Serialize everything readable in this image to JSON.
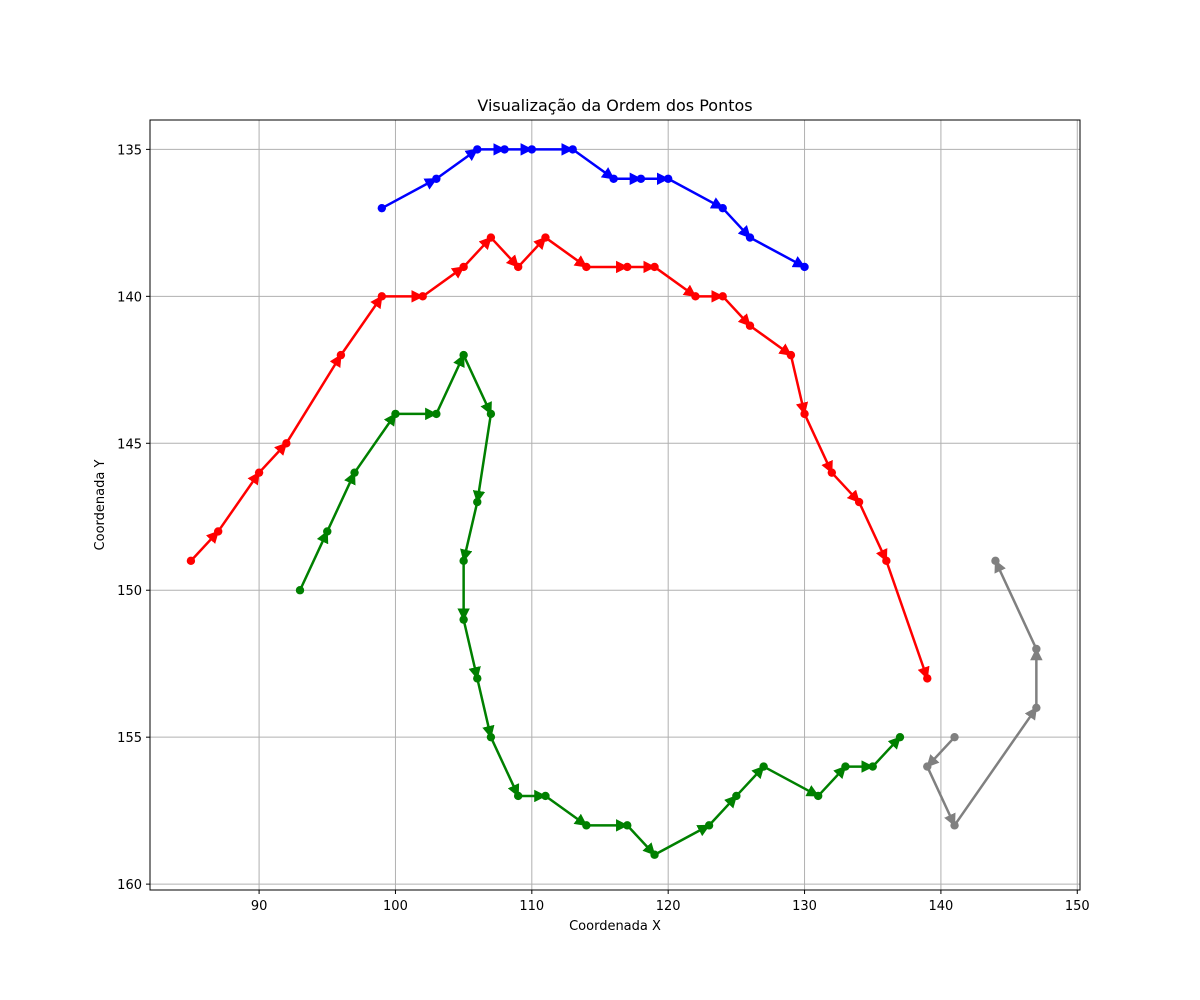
{
  "chart_data": {
    "type": "line",
    "title": "Visualização da Ordem dos Pontos",
    "xlabel": "Coordenada X",
    "ylabel": "Coordenada Y",
    "xlim": [
      82,
      150.2
    ],
    "ylim": [
      134,
      160.2
    ],
    "y_inverted": true,
    "grid": true,
    "xticks": [
      90,
      100,
      110,
      120,
      130,
      140,
      150
    ],
    "yticks": [
      135,
      140,
      145,
      150,
      155,
      160
    ],
    "series": [
      {
        "color": "#0000ff",
        "points": [
          [
            99,
            137
          ],
          [
            103,
            136
          ],
          [
            106,
            135
          ],
          [
            108,
            135
          ],
          [
            110,
            135
          ],
          [
            113,
            135
          ],
          [
            116,
            136
          ],
          [
            118,
            136
          ],
          [
            120,
            136
          ],
          [
            124,
            137
          ],
          [
            126,
            138
          ],
          [
            130,
            139
          ]
        ]
      },
      {
        "color": "#ff0000",
        "points": [
          [
            85,
            149
          ],
          [
            87,
            148
          ],
          [
            90,
            146
          ],
          [
            92,
            145
          ],
          [
            96,
            142
          ],
          [
            99,
            140
          ],
          [
            102,
            140
          ],
          [
            105,
            139
          ],
          [
            107,
            138
          ],
          [
            109,
            139
          ],
          [
            111,
            138
          ],
          [
            114,
            139
          ],
          [
            117,
            139
          ],
          [
            119,
            139
          ],
          [
            122,
            140
          ],
          [
            124,
            140
          ],
          [
            126,
            141
          ],
          [
            129,
            142
          ],
          [
            130,
            144
          ],
          [
            132,
            146
          ],
          [
            134,
            147
          ],
          [
            136,
            149
          ],
          [
            139,
            153
          ]
        ]
      },
      {
        "color": "#008000",
        "points": [
          [
            93,
            150
          ],
          [
            95,
            148
          ],
          [
            97,
            146
          ],
          [
            100,
            144
          ],
          [
            103,
            144
          ],
          [
            105,
            142
          ],
          [
            107,
            144
          ],
          [
            106,
            147
          ],
          [
            105,
            149
          ],
          [
            105,
            151
          ],
          [
            106,
            153
          ],
          [
            107,
            155
          ],
          [
            109,
            157
          ],
          [
            111,
            157
          ],
          [
            114,
            158
          ],
          [
            117,
            158
          ],
          [
            119,
            159
          ],
          [
            123,
            158
          ],
          [
            125,
            157
          ],
          [
            127,
            156
          ],
          [
            131,
            157
          ],
          [
            133,
            156
          ],
          [
            135,
            156
          ],
          [
            137,
            155
          ]
        ]
      },
      {
        "color": "#808080",
        "points": [
          [
            141,
            155
          ],
          [
            139,
            156
          ],
          [
            141,
            158
          ],
          [
            147,
            154
          ],
          [
            147,
            152
          ],
          [
            144,
            149
          ]
        ]
      }
    ]
  }
}
